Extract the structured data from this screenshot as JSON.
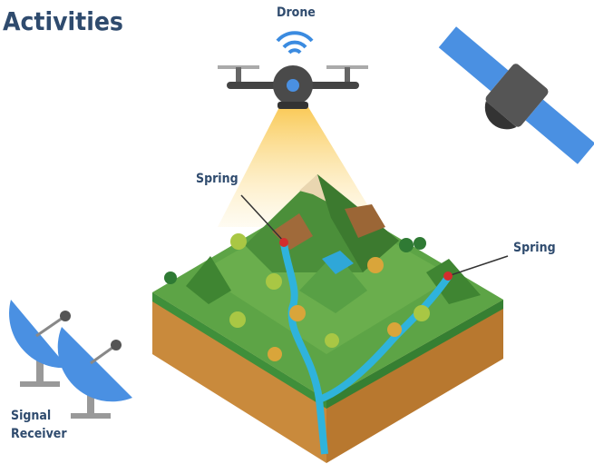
{
  "title": "Activities",
  "labels": {
    "drone": "Drone",
    "springs": [
      "Spring",
      "Spring"
    ],
    "receiver": [
      "Signal",
      "Receiver"
    ]
  }
}
